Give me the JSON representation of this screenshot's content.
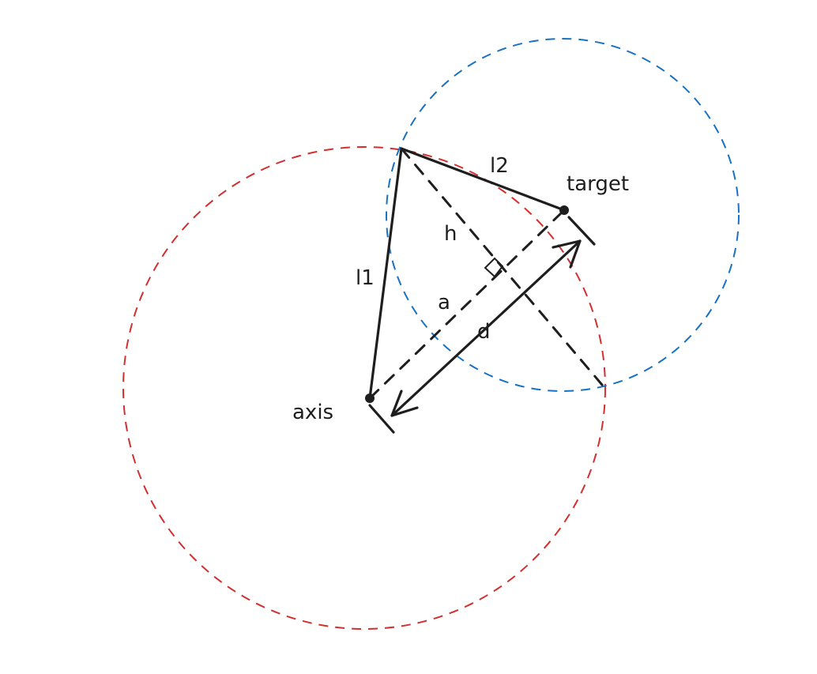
{
  "labels": {
    "l1": "l1",
    "l2": "l2",
    "target": "target",
    "h": "h",
    "a": "a",
    "d": "d",
    "axis": "axis"
  },
  "colors": {
    "red_circle": "#d32f2f",
    "blue_circle": "#1971c2",
    "ink": "#1e1e1e",
    "background": "#ffffff"
  }
}
